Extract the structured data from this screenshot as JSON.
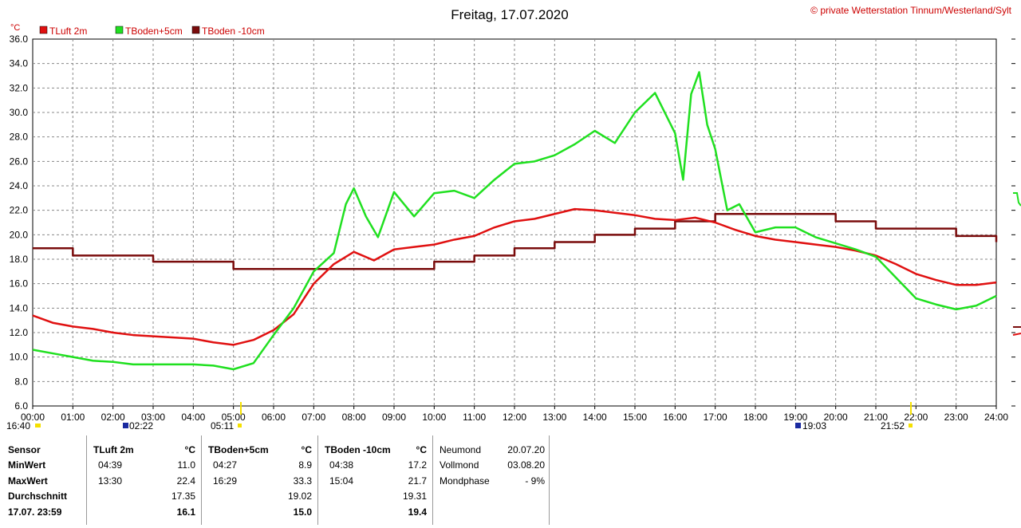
{
  "title": "Freitag, 17.07.2020",
  "credit": "© private Wetterstation Tinnum/Westerland/Sylt",
  "unit": "°C",
  "colors": {
    "luft": "#e01010",
    "boden5": "#20e020",
    "boden10": "#7a0c0c"
  },
  "chart_data": {
    "type": "line",
    "x_ticks": [
      "00:00",
      "01:00",
      "02:00",
      "03:00",
      "04:00",
      "05:00",
      "06:00",
      "07:00",
      "08:00",
      "09:00",
      "10:00",
      "11:00",
      "12:00",
      "13:00",
      "14:00",
      "15:00",
      "16:00",
      "17:00",
      "18:00",
      "19:00",
      "20:00",
      "21:00",
      "22:00",
      "23:00",
      "24:00"
    ],
    "y_ticks": [
      "6.0",
      "8.0",
      "10.0",
      "12.0",
      "14.0",
      "16.0",
      "18.0",
      "20.0",
      "22.0",
      "24.0",
      "26.0",
      "28.0",
      "30.0",
      "32.0",
      "34.0",
      "36.0"
    ],
    "ylim": [
      6,
      36
    ],
    "xlim": [
      0,
      24
    ],
    "grid": true,
    "legend_position": "top-left",
    "series": [
      {
        "name": "TLuft 2m",
        "key": "luft",
        "points": [
          [
            0,
            13.4
          ],
          [
            0.5,
            12.8
          ],
          [
            1,
            12.5
          ],
          [
            1.5,
            12.3
          ],
          [
            2,
            12.0
          ],
          [
            2.5,
            11.8
          ],
          [
            3,
            11.7
          ],
          [
            3.5,
            11.6
          ],
          [
            4,
            11.5
          ],
          [
            4.5,
            11.2
          ],
          [
            5,
            11.0
          ],
          [
            5.5,
            11.4
          ],
          [
            6,
            12.2
          ],
          [
            6.5,
            13.5
          ],
          [
            7,
            16.0
          ],
          [
            7.5,
            17.6
          ],
          [
            8,
            18.6
          ],
          [
            8.5,
            17.9
          ],
          [
            9,
            18.8
          ],
          [
            9.5,
            19.0
          ],
          [
            10,
            19.2
          ],
          [
            10.5,
            19.6
          ],
          [
            11,
            19.9
          ],
          [
            11.5,
            20.6
          ],
          [
            12,
            21.1
          ],
          [
            12.5,
            21.3
          ],
          [
            13,
            21.7
          ],
          [
            13.5,
            22.1
          ],
          [
            14,
            22.0
          ],
          [
            14.5,
            21.8
          ],
          [
            15,
            21.6
          ],
          [
            15.5,
            21.3
          ],
          [
            16,
            21.2
          ],
          [
            16.5,
            21.4
          ],
          [
            17,
            21.0
          ],
          [
            17.5,
            20.4
          ],
          [
            18,
            19.9
          ],
          [
            18.5,
            19.6
          ],
          [
            19,
            19.4
          ],
          [
            19.5,
            19.2
          ],
          [
            20,
            19.0
          ],
          [
            20.5,
            18.7
          ],
          [
            21,
            18.3
          ],
          [
            21.5,
            17.6
          ],
          [
            22,
            16.8
          ],
          [
            22.5,
            16.3
          ],
          [
            23,
            15.9
          ],
          [
            23.5,
            15.9
          ],
          [
            24,
            16.1
          ]
        ]
      },
      {
        "name": "TBoden+5cm",
        "key": "boden5",
        "points": [
          [
            0,
            10.6
          ],
          [
            0.5,
            10.3
          ],
          [
            1,
            10.0
          ],
          [
            1.5,
            9.7
          ],
          [
            2,
            9.6
          ],
          [
            2.5,
            9.4
          ],
          [
            3,
            9.4
          ],
          [
            3.5,
            9.4
          ],
          [
            4,
            9.4
          ],
          [
            4.5,
            9.3
          ],
          [
            5,
            9.0
          ],
          [
            5.5,
            9.5
          ],
          [
            6,
            11.8
          ],
          [
            6.5,
            14.0
          ],
          [
            7,
            17.0
          ],
          [
            7.5,
            18.5
          ],
          [
            7.8,
            22.5
          ],
          [
            8,
            23.8
          ],
          [
            8.3,
            21.5
          ],
          [
            8.6,
            19.8
          ],
          [
            9,
            23.5
          ],
          [
            9.5,
            21.5
          ],
          [
            10,
            23.4
          ],
          [
            10.5,
            23.6
          ],
          [
            11,
            23.0
          ],
          [
            11.5,
            24.5
          ],
          [
            12,
            25.8
          ],
          [
            12.5,
            26.0
          ],
          [
            13,
            26.5
          ],
          [
            13.5,
            27.4
          ],
          [
            14,
            28.5
          ],
          [
            14.5,
            27.5
          ],
          [
            15,
            30.0
          ],
          [
            15.5,
            31.6
          ],
          [
            16,
            28.3
          ],
          [
            16.2,
            24.5
          ],
          [
            16.4,
            31.5
          ],
          [
            16.6,
            33.3
          ],
          [
            16.8,
            29.0
          ],
          [
            17,
            27.0
          ],
          [
            17.3,
            22.0
          ],
          [
            17.6,
            22.5
          ],
          [
            18,
            20.2
          ],
          [
            18.5,
            20.6
          ],
          [
            19,
            20.6
          ],
          [
            19.5,
            19.8
          ],
          [
            20,
            19.3
          ],
          [
            20.5,
            18.8
          ],
          [
            21,
            18.2
          ],
          [
            21.5,
            16.5
          ],
          [
            22,
            14.8
          ],
          [
            22.5,
            14.3
          ],
          [
            23,
            13.9
          ],
          [
            23.5,
            14.2
          ],
          [
            24,
            15.0
          ]
        ]
      },
      {
        "name": "TBoden -10cm",
        "key": "boden10",
        "points": [
          [
            0,
            18.9
          ],
          [
            1,
            18.3
          ],
          [
            2,
            18.3
          ],
          [
            3,
            17.8
          ],
          [
            4,
            17.8
          ],
          [
            5,
            17.2
          ],
          [
            6,
            17.2
          ],
          [
            7,
            17.2
          ],
          [
            8,
            17.2
          ],
          [
            9,
            17.2
          ],
          [
            10,
            17.8
          ],
          [
            11,
            18.3
          ],
          [
            12,
            18.9
          ],
          [
            13,
            19.4
          ],
          [
            14,
            20.0
          ],
          [
            15,
            20.5
          ],
          [
            16,
            21.1
          ],
          [
            17,
            21.7
          ],
          [
            18,
            21.7
          ],
          [
            19,
            21.7
          ],
          [
            20,
            21.1
          ],
          [
            21,
            20.5
          ],
          [
            22,
            20.5
          ],
          [
            23,
            19.9
          ],
          [
            24,
            19.4
          ]
        ]
      }
    ]
  },
  "sun_moon_markers": [
    "16:40",
    "02:22",
    "05:11",
    "19:03",
    "21:52"
  ],
  "stats": {
    "sensor_label": "Sensor",
    "min_label": "MinWert",
    "max_label": "MaxWert",
    "avg_label": "Durchschnitt",
    "current_label": "17.07. 23:59",
    "luft": {
      "header": "TLuft 2m",
      "unit": "°C",
      "min_time": "04:39",
      "min": "11.0",
      "max_time": "13:30",
      "max": "22.4",
      "avg": "17.35",
      "current": "16.1"
    },
    "boden5": {
      "header": "TBoden+5cm",
      "unit": "°C",
      "min_time": "04:27",
      "min": "8.9",
      "max_time": "16:29",
      "max": "33.3",
      "avg": "19.02",
      "current": "15.0"
    },
    "boden10": {
      "header": "TBoden -10cm",
      "unit": "°C",
      "min_time": "04:38",
      "min": "17.2",
      "max_time": "15:04",
      "max": "21.7",
      "avg": "19.31",
      "current": "19.4"
    },
    "moon": {
      "neumond_label": "Neumond",
      "neumond": "20.07.20",
      "vollmond_label": "Vollmond",
      "vollmond": "03.08.20",
      "phase_label": "Mondphase",
      "phase": "- 9%"
    }
  }
}
